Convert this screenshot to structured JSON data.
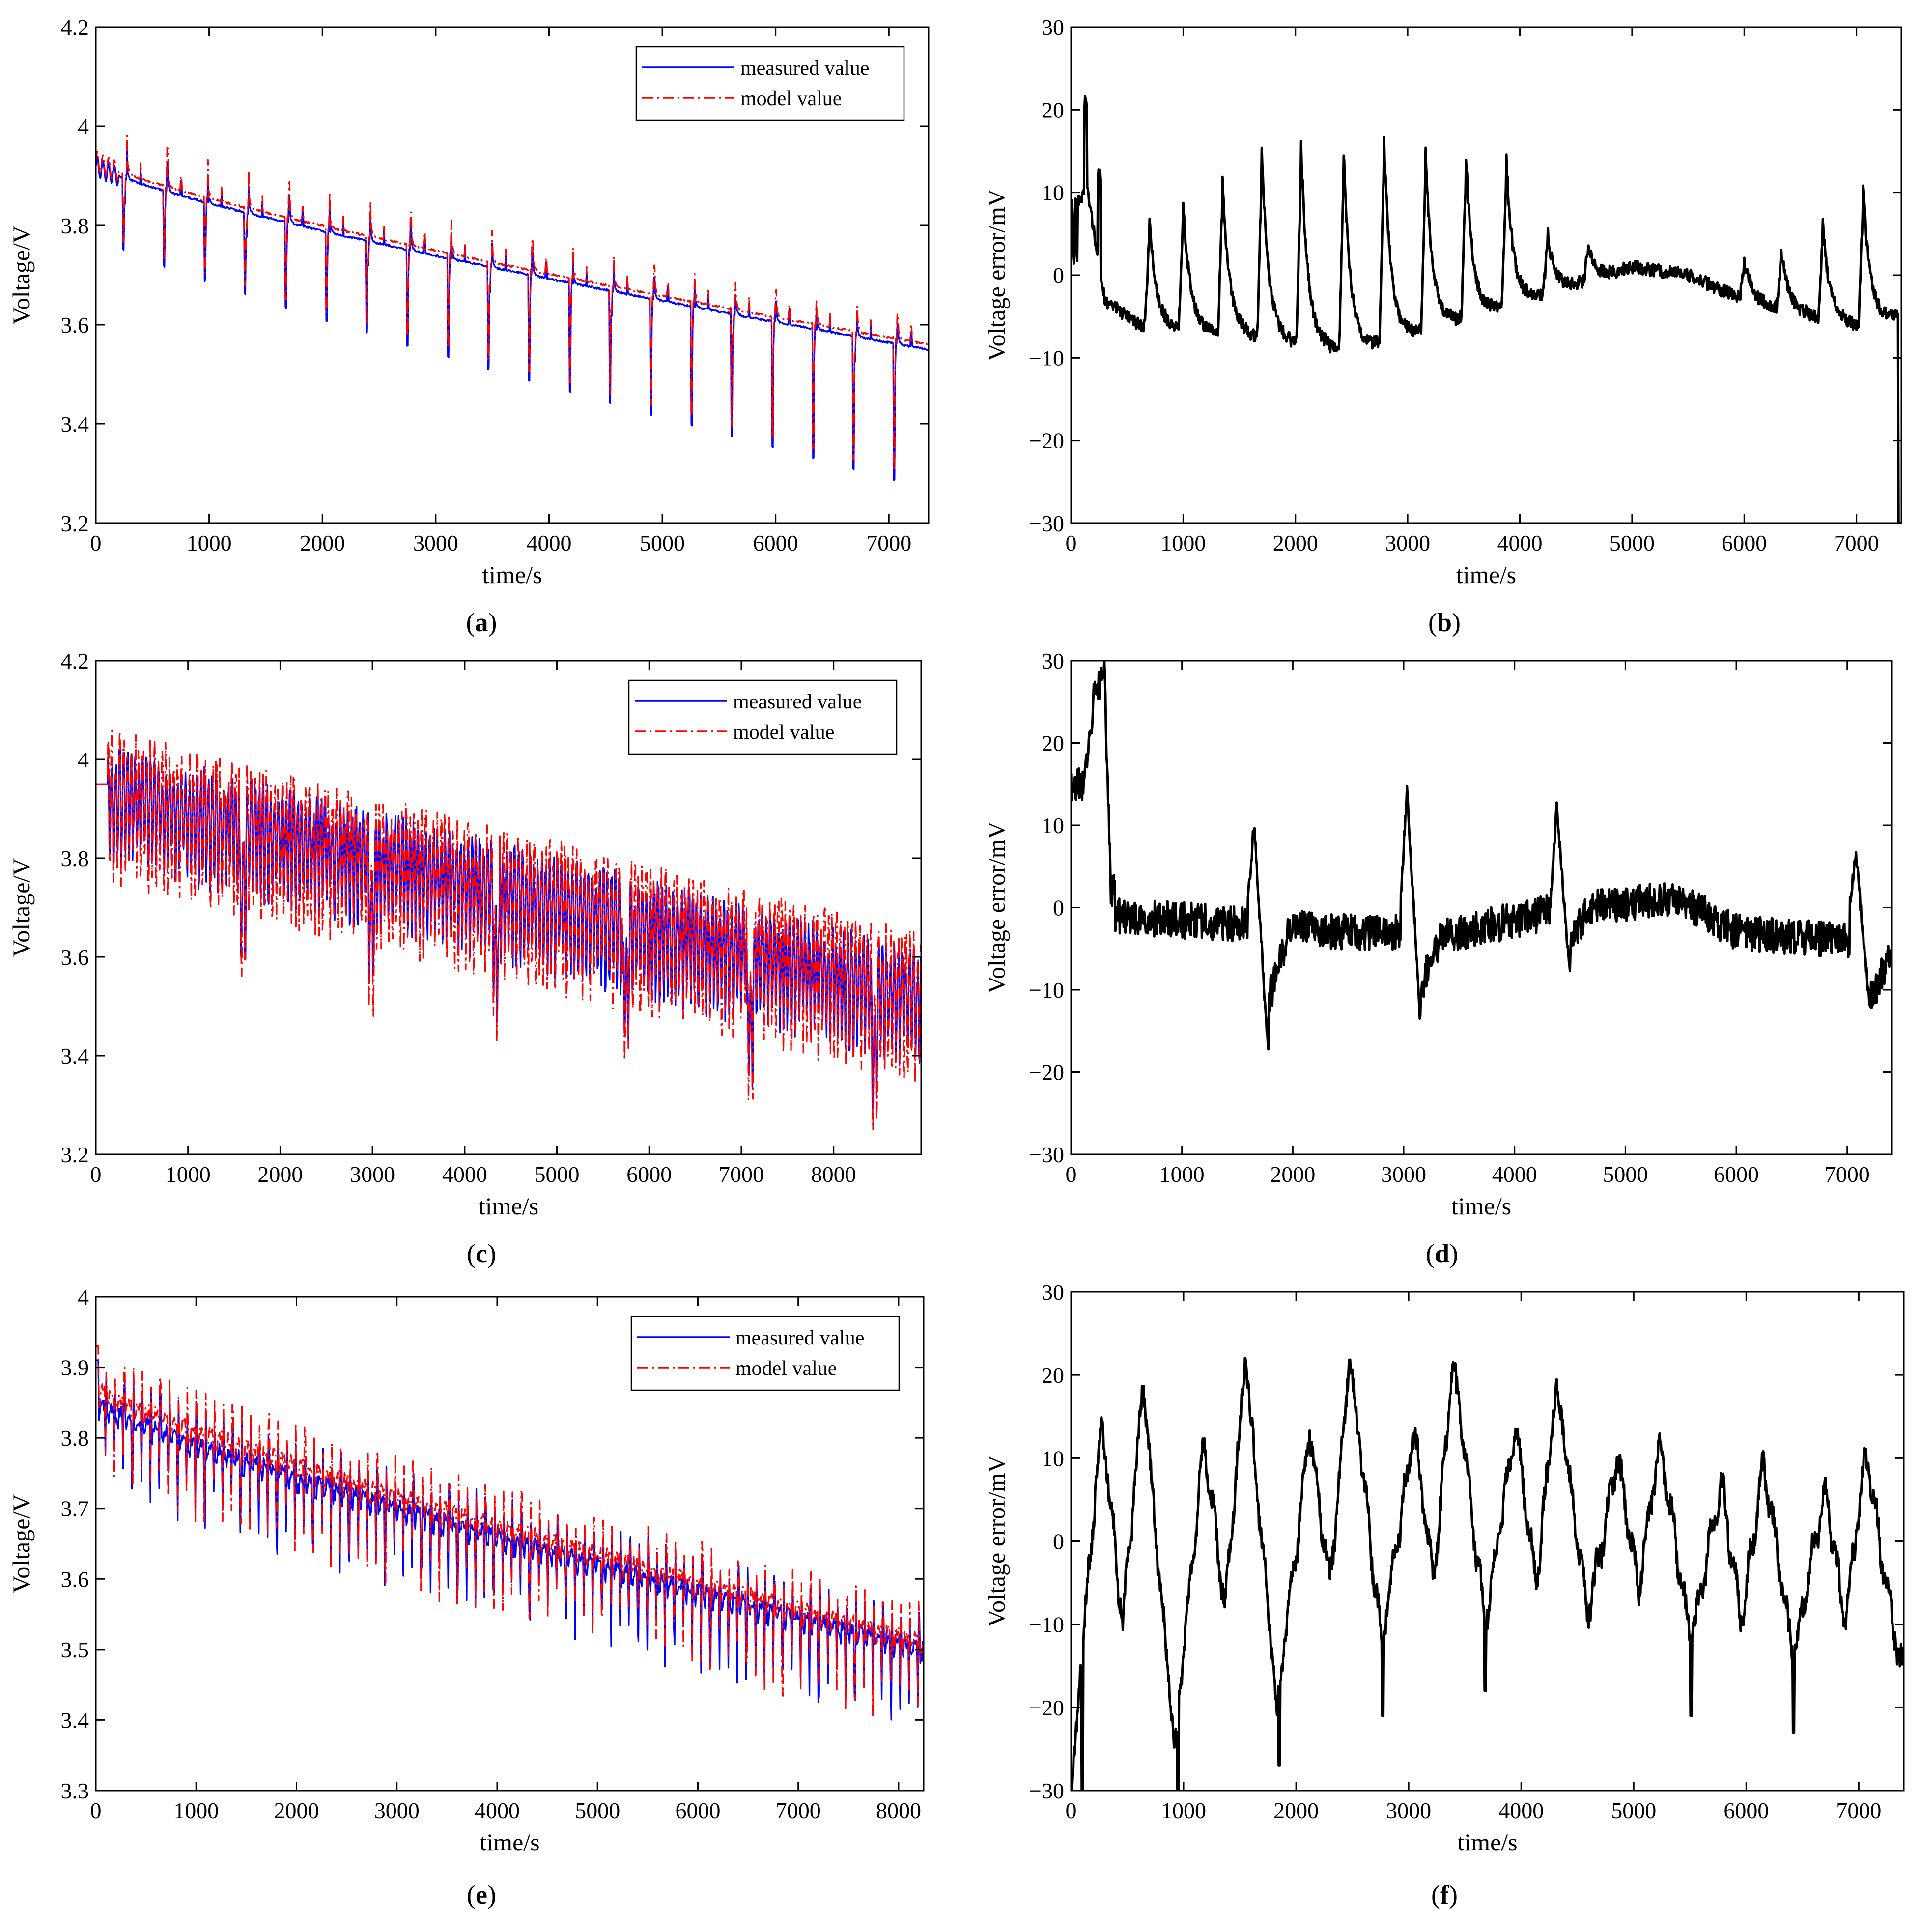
{
  "chart_data": [
    {
      "panel": "(a)",
      "type": "line",
      "xlabel": "time/s",
      "ylabel": "Voltage/V",
      "xlim": [
        0,
        7350
      ],
      "ylim": [
        3.2,
        4.2
      ],
      "xticks": [
        0,
        1000,
        2000,
        3000,
        4000,
        5000,
        6000,
        7000
      ],
      "yticks": [
        3.2,
        3.4,
        3.6,
        3.8,
        4.0,
        4.2
      ],
      "ytick_labels": [
        "3.2",
        "3.4",
        "3.6",
        "3.8",
        "4",
        "4.2"
      ],
      "legend": {
        "position": "top-right",
        "entries": [
          "measured value",
          "model value"
        ]
      },
      "series": [
        {
          "name": "measured value",
          "color": "#0000ff",
          "style": "solid",
          "gen": "pulses",
          "p": {
            "start": 3.92,
            "end": 3.55,
            "spike": 0.06,
            "dip": 0.2,
            "period": 358,
            "first": 240,
            "jitter": 0.004,
            "seed": 1,
            "edip": 0.08
          }
        },
        {
          "name": "model value",
          "color": "#ff0000",
          "style": "dashdot",
          "gen": "pulses",
          "p": {
            "start": 3.93,
            "end": 3.56,
            "spike": 0.08,
            "dip": 0.19,
            "period": 358,
            "first": 240,
            "jitter": 0.004,
            "seed": 2,
            "edip": 0.08
          }
        }
      ]
    },
    {
      "panel": "(b)",
      "type": "line",
      "xlabel": "time/s",
      "ylabel": "Voltage error/mV",
      "xlim": [
        0,
        7400
      ],
      "ylim": [
        -30,
        30
      ],
      "xticks": [
        0,
        1000,
        2000,
        3000,
        4000,
        5000,
        6000,
        7000
      ],
      "yticks": [
        -30,
        -20,
        -10,
        0,
        10,
        20,
        30
      ],
      "ytick_labels": [
        "−30",
        "−20",
        "−10",
        "0",
        "10",
        "20",
        "30"
      ],
      "series": [
        {
          "name": "error",
          "color": "#000000",
          "style": "solid",
          "gen": "err_spikes",
          "p": {
            "peaks_t": [
              700,
              1000,
              1350,
              1700,
              2050,
              2430,
              2790,
              3160,
              3520,
              3880,
              4250,
              4610,
              6000,
              6330,
              6700,
              7060
            ],
            "peaks_v": [
              7,
              9,
              11.5,
              15,
              16,
              15,
              16.5,
              15,
              14.5,
              14,
              5,
              4,
              2,
              3,
              6,
              11
            ],
            "baseline": [
              [
                0,
                8
              ],
              [
                150,
                10
              ],
              [
                300,
                -3
              ],
              [
                600,
                -6
              ],
              [
                1500,
                -7
              ],
              [
                2500,
                -9
              ],
              [
                3500,
                -5
              ],
              [
                4500,
                -1
              ],
              [
                5000,
                1
              ],
              [
                5500,
                0
              ],
              [
                6000,
                -3
              ],
              [
                7000,
                -6
              ],
              [
                7300,
                -5
              ]
            ],
            "decay": 60,
            "noise": 0.8,
            "seed": 3,
            "init_spike": [
              [
                130,
                21
              ],
              [
                250,
                12
              ]
            ],
            "end_drop": -30
          }
        }
      ]
    },
    {
      "panel": "(c)",
      "type": "line",
      "xlabel": "time/s",
      "ylabel": "Voltage/V",
      "xlim": [
        0,
        8950
      ],
      "ylim": [
        3.2,
        4.2
      ],
      "xticks": [
        0,
        1000,
        2000,
        3000,
        4000,
        5000,
        6000,
        7000,
        8000
      ],
      "yticks": [
        3.2,
        3.4,
        3.6,
        3.8,
        4.0,
        4.2
      ],
      "ytick_labels": [
        "3.2",
        "3.4",
        "3.6",
        "3.8",
        "4",
        "4.2"
      ],
      "legend": {
        "position": "top-right",
        "entries": [
          "measured value",
          "model value"
        ]
      },
      "series": [
        {
          "name": "measured value",
          "color": "#0000ff",
          "style": "solid",
          "gen": "dense",
          "p": {
            "start": 3.92,
            "end": 3.5,
            "amp": 0.12,
            "period": 42,
            "blocks": [
              1600,
              3000,
              4350,
              5750,
              7100,
              8450
            ],
            "blockdip": 0.25,
            "seed": 4
          }
        },
        {
          "name": "model value",
          "color": "#ff0000",
          "style": "dashdot",
          "gen": "dense",
          "p": {
            "start": 3.92,
            "end": 3.5,
            "amp": 0.15,
            "period": 42,
            "blocks": [
              1600,
              3000,
              4350,
              5750,
              7100,
              8450
            ],
            "blockdip": 0.27,
            "seed": 5
          }
        }
      ]
    },
    {
      "panel": "(d)",
      "type": "line",
      "xlabel": "time/s",
      "ylabel": "Voltage error/mV",
      "xlim": [
        0,
        7400
      ],
      "ylim": [
        -30,
        30
      ],
      "xticks": [
        0,
        1000,
        2000,
        3000,
        4000,
        5000,
        6000,
        7000
      ],
      "yticks": [
        -30,
        -20,
        -10,
        0,
        10,
        20,
        30
      ],
      "ytick_labels": [
        "−30",
        "−20",
        "−10",
        "0",
        "10",
        "20",
        "30"
      ],
      "series": [
        {
          "name": "error",
          "color": "#000000",
          "style": "solid",
          "gen": "err_noise",
          "p": {
            "events": [
              [
                1650,
                10,
                -18,
                1780
              ],
              [
                3030,
                14.5,
                -14,
                3150
              ],
              [
                4380,
                12,
                -8,
                4500
              ],
              [
                7080,
                6.5,
                -12,
                7200
              ]
            ],
            "start": [
              [
                0,
                15
              ],
              [
                120,
                15
              ],
              [
                200,
                25
              ],
              [
                300,
                29
              ],
              [
                360,
                2
              ]
            ],
            "baseline": [
              [
                400,
                -1
              ],
              [
                1500,
                -2
              ],
              [
                2500,
                -3
              ],
              [
                3500,
                -3
              ],
              [
                4500,
                0
              ],
              [
                5500,
                1
              ],
              [
                6000,
                -3
              ],
              [
                7000,
                -4
              ],
              [
                7380,
                -6
              ]
            ],
            "noise": 2.2,
            "seed": 6
          }
        }
      ]
    },
    {
      "panel": "(e)",
      "type": "line",
      "xlabel": "time/s",
      "ylabel": "Voltage/V",
      "xlim": [
        0,
        8250
      ],
      "ylim": [
        3.3,
        4.0
      ],
      "xticks": [
        0,
        1000,
        2000,
        3000,
        4000,
        5000,
        6000,
        7000,
        8000
      ],
      "yticks": [
        3.3,
        3.4,
        3.5,
        3.6,
        3.7,
        3.8,
        3.9,
        4.0
      ],
      "ytick_labels": [
        "3.3",
        "3.4",
        "3.5",
        "3.6",
        "3.7",
        "3.8",
        "3.9",
        "4"
      ],
      "legend": {
        "position": "top-right",
        "entries": [
          "measured value",
          "model value"
        ]
      },
      "series": [
        {
          "name": "measured value",
          "color": "#0000ff",
          "style": "solid",
          "gen": "medium",
          "p": {
            "start": 3.85,
            "end": 3.5,
            "amp": 0.06,
            "period": 90,
            "dip": 0.1,
            "seed": 7
          }
        },
        {
          "name": "model value",
          "color": "#ff0000",
          "style": "dashdot",
          "gen": "medium",
          "p": {
            "start": 3.87,
            "end": 3.51,
            "amp": 0.06,
            "period": 90,
            "dip": 0.11,
            "seed": 8
          }
        }
      ]
    },
    {
      "panel": "(f)",
      "type": "line",
      "xlabel": "time/s",
      "ylabel": "Voltage error/mV",
      "xlim": [
        0,
        7400
      ],
      "ylim": [
        -30,
        30
      ],
      "xticks": [
        0,
        1000,
        2000,
        3000,
        4000,
        5000,
        6000,
        7000
      ],
      "yticks": [
        -30,
        -20,
        -10,
        0,
        10,
        20,
        30
      ],
      "ytick_labels": [
        "−30",
        "−20",
        "−10",
        "0",
        "10",
        "20",
        "30"
      ],
      "series": [
        {
          "name": "error",
          "color": "#000000",
          "style": "solid",
          "gen": "err_saw",
          "p": {
            "peaks_t": [
              270,
              640,
              1180,
              1550,
              2120,
              2480,
              3050,
              3400,
              3950,
              4320,
              4860,
              5230,
              5780,
              6150,
              6700,
              7060
            ],
            "peaks_v": [
              15,
              19,
              12,
              22,
              13,
              22,
              13.5,
              22,
              14,
              19,
              10,
              12,
              7,
              9.5,
              6.5,
              11
            ],
            "troughs_t": [
              0,
              460,
              920,
              1370,
              1830,
              2300,
              2760,
              3220,
              3680,
              4130,
              4590,
              5040,
              5510,
              5960,
              6420,
              6880,
              7350
            ],
            "troughs_v": [
              -30,
              -10,
              -25,
              -8,
              -20,
              -5,
              -12,
              -5,
              -10,
              -5,
              -9,
              -6,
              -12,
              -10,
              -14,
              -10,
              -14
            ],
            "drops": [
              [
                100,
                -30
              ],
              [
                950,
                -30
              ],
              [
                1850,
                -27
              ],
              [
                2770,
                -21
              ],
              [
                3680,
                -18
              ],
              [
                5510,
                -21
              ],
              [
                6420,
                -23
              ]
            ],
            "noise": 1.4,
            "seed": 9
          }
        }
      ]
    }
  ],
  "panel_labels": [
    "(a)",
    "(b)",
    "(c)",
    "(d)",
    "(e)",
    "(f)"
  ]
}
